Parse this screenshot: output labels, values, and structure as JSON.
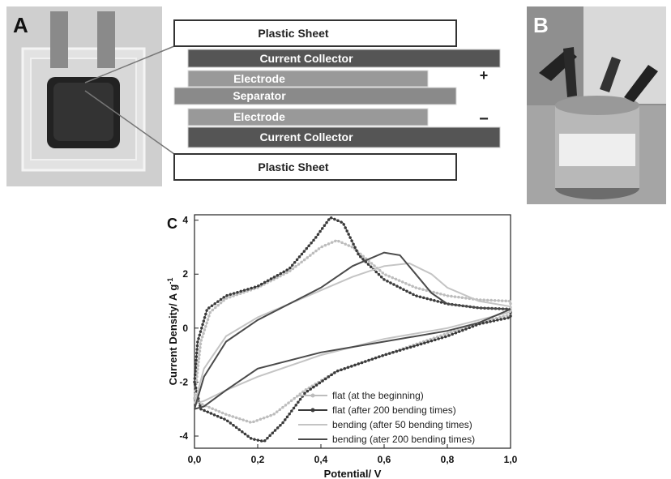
{
  "panels": {
    "a": "A",
    "b": "B",
    "c": "C"
  },
  "diagram": {
    "top_sheet": "Plastic Sheet",
    "top_collector": "Current Collector",
    "top_electrode": "Electrode",
    "separator": "Separator",
    "bottom_electrode": "Electrode",
    "bottom_collector": "Current Collector",
    "bottom_sheet": "Plastic Sheet",
    "plus": "+",
    "minus": "−"
  },
  "chart_data": {
    "type": "line",
    "ylabel": "Current Density/ A g",
    "ylabel_sup": "-1",
    "xlabel": "Potential/ V",
    "xlim": [
      0,
      1
    ],
    "ylim": [
      -4.45,
      4.2
    ],
    "xticks": [
      {
        "value": 0,
        "label": "0,0"
      },
      {
        "value": 0.2,
        "label": "0,2"
      },
      {
        "value": 0.4,
        "label": "0,4"
      },
      {
        "value": 0.6,
        "label": "0,6"
      },
      {
        "value": 0.8,
        "label": "0,8"
      },
      {
        "value": 1,
        "label": "1,0"
      }
    ],
    "yticks": [
      -4,
      -2,
      0,
      2,
      4
    ],
    "legend": "lower right",
    "series": [
      {
        "name": "flat (at the beginning)",
        "color": "#bdbdbd",
        "style": "dotted",
        "x": [
          0,
          0.02,
          0.05,
          0.1,
          0.2,
          0.3,
          0.4,
          0.45,
          0.5,
          0.6,
          0.7,
          0.8,
          0.9,
          1.0,
          1.0,
          0.9,
          0.8,
          0.6,
          0.45,
          0.35,
          0.25,
          0.18,
          0.1,
          0.02,
          0
        ],
        "values": [
          -2.6,
          -0.5,
          0.6,
          1.1,
          1.5,
          2.1,
          3.0,
          3.25,
          3.0,
          2.0,
          1.5,
          1.2,
          1.05,
          1.0,
          0.5,
          0.2,
          -0.2,
          -1.0,
          -1.6,
          -2.3,
          -3.2,
          -3.5,
          -3.2,
          -2.8,
          -2.6
        ]
      },
      {
        "name": "flat (after 200 bending times)",
        "color": "#3a3a3a",
        "style": "dotted",
        "x": [
          0,
          0.01,
          0.04,
          0.1,
          0.2,
          0.3,
          0.38,
          0.43,
          0.47,
          0.52,
          0.6,
          0.7,
          0.8,
          0.9,
          1.0,
          1.0,
          0.9,
          0.8,
          0.6,
          0.45,
          0.35,
          0.28,
          0.22,
          0.18,
          0.1,
          0.02,
          0
        ],
        "values": [
          -2.0,
          -0.5,
          0.7,
          1.2,
          1.55,
          2.2,
          3.3,
          4.1,
          3.9,
          2.7,
          1.8,
          1.2,
          0.9,
          0.75,
          0.7,
          0.4,
          0.15,
          -0.3,
          -1.0,
          -1.6,
          -2.4,
          -3.5,
          -4.2,
          -4.1,
          -3.4,
          -3.0,
          -2.0
        ]
      },
      {
        "name": "bending (after 50 bending times)",
        "color": "#c4c4c4",
        "style": "solid",
        "x": [
          0,
          0.03,
          0.1,
          0.2,
          0.3,
          0.4,
          0.5,
          0.6,
          0.68,
          0.75,
          0.8,
          0.9,
          1.0,
          1.0,
          0.9,
          0.8,
          0.6,
          0.4,
          0.2,
          0.1,
          0.03,
          0
        ],
        "values": [
          -2.8,
          -1.5,
          -0.3,
          0.4,
          0.9,
          1.4,
          1.9,
          2.3,
          2.4,
          2.0,
          1.5,
          1.0,
          0.8,
          0.6,
          0.3,
          0.0,
          -0.4,
          -1.0,
          -1.8,
          -2.3,
          -2.7,
          -2.8
        ]
      },
      {
        "name": "bending (ater 200 bending times)",
        "color": "#4a4a4a",
        "style": "solid",
        "x": [
          0,
          0.03,
          0.1,
          0.2,
          0.3,
          0.4,
          0.5,
          0.6,
          0.65,
          0.7,
          0.75,
          0.8,
          0.9,
          1.0,
          1.0,
          0.9,
          0.8,
          0.6,
          0.4,
          0.2,
          0.1,
          0.03,
          0
        ],
        "values": [
          -3.0,
          -1.8,
          -0.5,
          0.3,
          0.9,
          1.5,
          2.3,
          2.8,
          2.7,
          2.0,
          1.3,
          0.9,
          0.75,
          0.7,
          0.7,
          0.2,
          -0.1,
          -0.5,
          -0.9,
          -1.5,
          -2.3,
          -2.9,
          -3.0
        ]
      }
    ]
  }
}
